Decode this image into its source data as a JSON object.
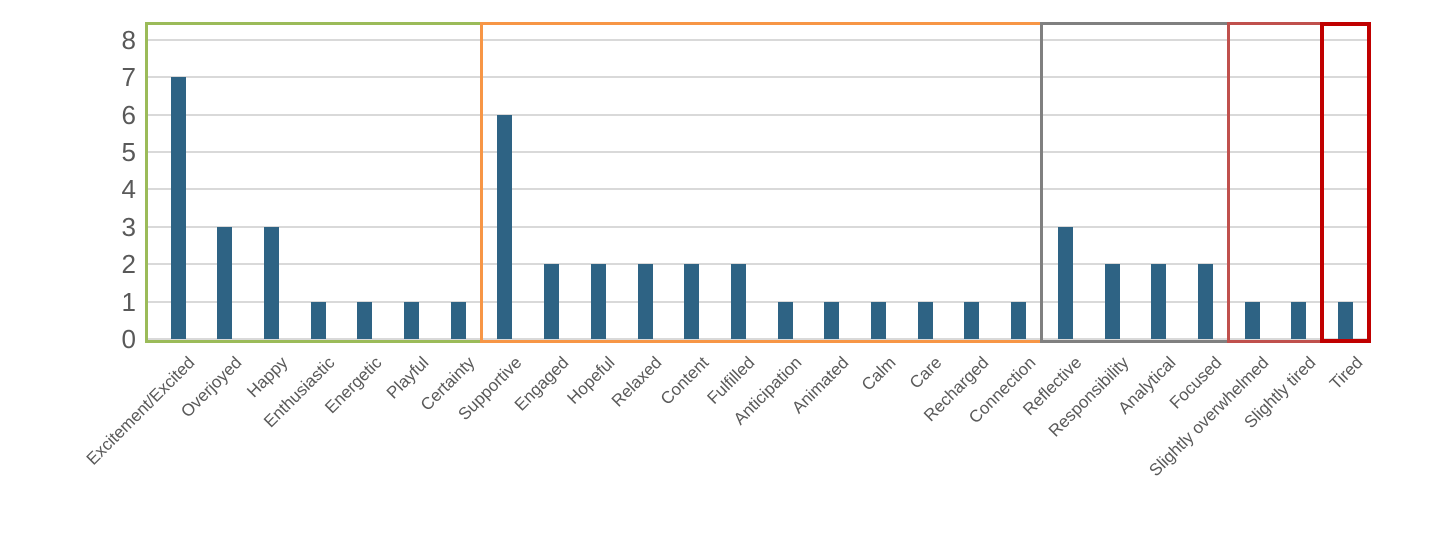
{
  "chart_data": {
    "type": "bar",
    "title": "",
    "xlabel": "",
    "ylabel": "",
    "ylim": [
      0,
      8
    ],
    "yticks": [
      0,
      1,
      2,
      3,
      4,
      5,
      6,
      7,
      8
    ],
    "grid": true,
    "legend_position": "none",
    "bar_color": "#2E6384",
    "gridline_color": "#D9D9D9",
    "axis_text_color": "#595959",
    "categories": [
      "Excitement/Excited",
      "Overjoyed",
      "Happy",
      "Enthusiastic",
      "Energetic",
      "Playful",
      "Certainty",
      "Supportive",
      "Engaged",
      "Hopeful",
      "Relaxed",
      "Content",
      "Fulfilled",
      "Anticipation",
      "Animated",
      "Calm",
      "Care",
      "Recharged",
      "Connection",
      "Reflective",
      "Responsibility",
      "Analytical",
      "Focused",
      "Slightly overwhelmed",
      "Slightly tired",
      "Tired"
    ],
    "values": [
      7,
      3,
      3,
      1,
      1,
      1,
      1,
      6,
      2,
      2,
      2,
      2,
      2,
      1,
      1,
      1,
      1,
      1,
      1,
      3,
      2,
      2,
      2,
      1,
      1,
      1
    ],
    "groups": [
      {
        "id": "green-group",
        "color": "#9BBB59",
        "border_px": 3,
        "start_index": 0,
        "count": 7
      },
      {
        "id": "orange-group",
        "color": "#F79646",
        "border_px": 3,
        "start_index": 7,
        "count": 12
      },
      {
        "id": "gray-group",
        "color": "#808080",
        "border_px": 3,
        "start_index": 19,
        "count": 4
      },
      {
        "id": "dark-red-group",
        "color": "#C0504D",
        "border_px": 3,
        "start_index": 23,
        "count": 2
      },
      {
        "id": "red-group",
        "color": "#C00000",
        "border_px": 4,
        "start_index": 25,
        "count": 1
      }
    ]
  }
}
